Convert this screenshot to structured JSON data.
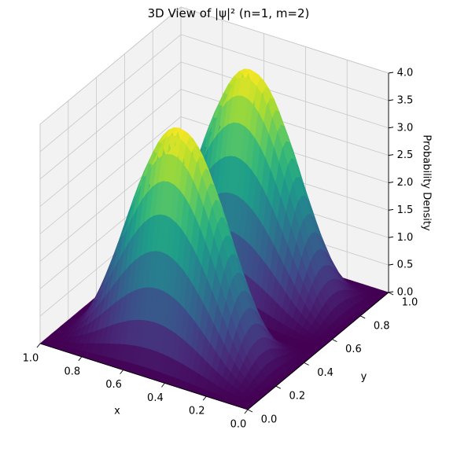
{
  "chart_data": {
    "type": "surface3d",
    "title": "3D View of |ψ|² (n=1, m=2)",
    "xlabel": "x",
    "ylabel": "y",
    "zlabel": "Probability Density",
    "xlim": [
      0,
      1
    ],
    "ylim": [
      0,
      1
    ],
    "zlim": [
      0,
      4
    ],
    "xticks": [
      "0.0",
      "0.2",
      "0.4",
      "0.6",
      "0.8",
      "1.0"
    ],
    "yticks": [
      "0.0",
      "0.2",
      "0.4",
      "0.6",
      "0.8",
      "1.0"
    ],
    "zticks": [
      "0.0",
      "0.5",
      "1.0",
      "1.5",
      "2.0",
      "2.5",
      "3.0",
      "3.5",
      "4.0"
    ],
    "function": "|psi|^2 = 4 * sin^2(pi*x) * sin^2(2*pi*y)",
    "amplitude": 4,
    "n": 1,
    "m": 2,
    "peaks": [
      {
        "x": 0.5,
        "y": 0.25,
        "z": 4.0
      },
      {
        "x": 0.5,
        "y": 0.75,
        "z": 4.0
      }
    ],
    "grid": true,
    "colormap": "viridis",
    "pane_color": "#f2f2f2",
    "grid_color": "#c8c8c8"
  }
}
